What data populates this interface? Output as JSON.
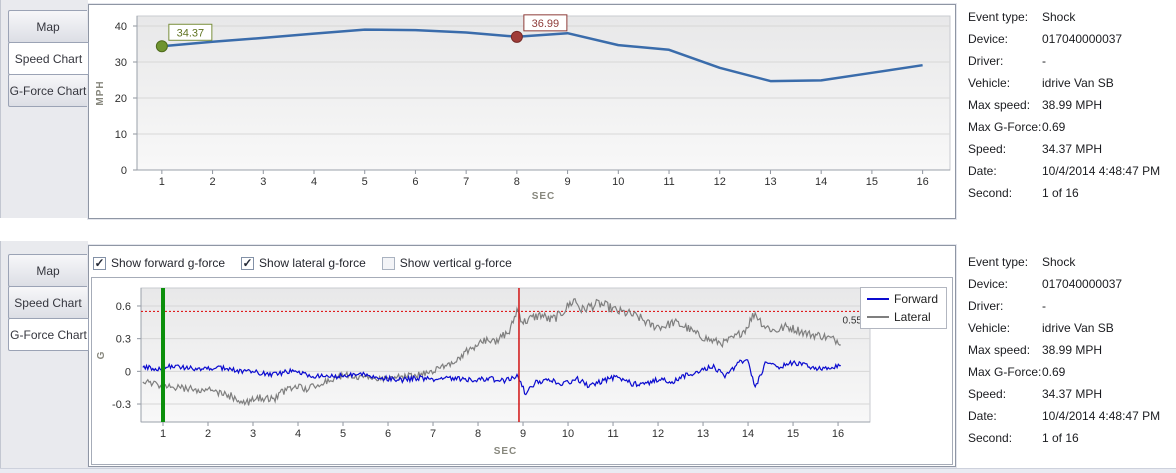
{
  "panels": {
    "speed": {
      "tabs": [
        {
          "label": "Map",
          "selected": false
        },
        {
          "label": "Speed Chart",
          "selected": true
        },
        {
          "label": "G-Force Chart",
          "selected": false
        }
      ]
    },
    "gforce": {
      "tabs": [
        {
          "label": "Map",
          "selected": false
        },
        {
          "label": "Speed Chart",
          "selected": false
        },
        {
          "label": "G-Force Chart",
          "selected": true
        }
      ],
      "checkboxes": [
        {
          "label": "Show forward g-force",
          "checked": true
        },
        {
          "label": "Show lateral g-force",
          "checked": true
        },
        {
          "label": "Show vertical g-force",
          "checked": false
        }
      ]
    }
  },
  "details": {
    "rows": [
      {
        "label": "Event type:",
        "value": "Shock"
      },
      {
        "label": "Device:",
        "value": "017040000037"
      },
      {
        "label": "Driver:",
        "value": "-"
      },
      {
        "label": "Vehicle:",
        "value": "idrive Van SB"
      },
      {
        "label": "Max speed:",
        "value": "38.99 MPH"
      },
      {
        "label": "Max G-Force:",
        "value": "0.69"
      },
      {
        "label": "Speed:",
        "value": "34.37 MPH"
      },
      {
        "label": "Date:",
        "value": "10/4/2014 4:48:47 PM"
      },
      {
        "label": "Second:",
        "value": "1 of 16"
      }
    ]
  },
  "chart_data": [
    {
      "type": "line",
      "title": "Speed Chart",
      "xlabel": "SEC",
      "ylabel": "MPH",
      "x": [
        1,
        2,
        3,
        4,
        5,
        6,
        7,
        8,
        9,
        10,
        11,
        12,
        13,
        14,
        15,
        16
      ],
      "series": [
        {
          "name": "Speed",
          "color": "#3a6cab",
          "values": [
            34.37,
            35.6,
            36.7,
            37.9,
            38.99,
            38.85,
            38.2,
            36.99,
            38.0,
            34.7,
            33.4,
            28.4,
            24.7,
            24.9,
            27.0,
            29.1
          ]
        }
      ],
      "annotations": [
        {
          "x": 1,
          "y": 34.37,
          "label": "34.37",
          "dot_fill": "#6f9430",
          "dot_stroke": "#4e6b1c",
          "box_stroke": "#7a8f3c",
          "text_color": "#5f7320"
        },
        {
          "x": 8,
          "y": 36.99,
          "label": "36.99",
          "dot_fill": "#a03c38",
          "dot_stroke": "#742825",
          "box_stroke": "#8e3b38",
          "text_color": "#8e3b38"
        }
      ],
      "xticks": [
        1,
        2,
        3,
        4,
        5,
        6,
        7,
        8,
        9,
        10,
        11,
        12,
        13,
        14,
        15,
        16
      ],
      "yticks": [
        0,
        10,
        20,
        30,
        40
      ],
      "xlim": [
        0.51,
        16.54
      ],
      "ylim": [
        0,
        42.78
      ],
      "grid": true,
      "legend_position": "none"
    },
    {
      "type": "line",
      "title": "G-Force Chart",
      "xlabel": "SEC",
      "ylabel": "G",
      "xticks": [
        1,
        2,
        3,
        4,
        5,
        6,
        7,
        8,
        9,
        10,
        11,
        12,
        13,
        14,
        15,
        16
      ],
      "yticks": [
        -0.3,
        0,
        0.3,
        0.6
      ],
      "xlim": [
        0.511,
        16.71
      ],
      "ylim": [
        -0.465,
        0.765
      ],
      "grid": true,
      "threshold": {
        "y": 0.55,
        "label": "0.55",
        "color": "#dd0000"
      },
      "event_markers": [
        {
          "name": "event-start-marker",
          "x": 1,
          "color": "#0b8f0b",
          "width": 4
        },
        {
          "name": "shock-moment-marker",
          "x": 8.91,
          "color": "#d21414",
          "width": 1.5
        }
      ],
      "series": [
        {
          "name": "Lateral",
          "color": "#7f7f7f",
          "noise": 0.028,
          "kx": [
            0.55,
            0.8,
            1.0,
            1.3,
            1.6,
            2.0,
            2.3,
            2.6,
            2.8,
            3.0,
            3.2,
            3.45,
            3.65,
            3.9,
            4.2,
            4.5,
            4.8,
            5.1,
            5.4,
            5.7,
            6.0,
            6.3,
            6.6,
            6.9,
            7.2,
            7.5,
            7.8,
            8.0,
            8.2,
            8.4,
            8.55,
            8.7,
            8.87,
            9.0,
            9.2,
            9.4,
            9.6,
            9.8,
            10.0,
            10.15,
            10.3,
            10.5,
            10.7,
            10.9,
            11.1,
            11.35,
            11.6,
            11.85,
            12.1,
            12.35,
            12.6,
            12.9,
            13.2,
            13.45,
            13.7,
            13.95,
            14.15,
            14.35,
            14.6,
            14.85,
            15.1,
            15.35,
            15.6,
            15.85,
            16.08
          ],
          "ky": [
            -0.09,
            -0.12,
            -0.13,
            -0.15,
            -0.16,
            -0.17,
            -0.2,
            -0.24,
            -0.29,
            -0.27,
            -0.24,
            -0.26,
            -0.19,
            -0.14,
            -0.16,
            -0.12,
            -0.06,
            -0.03,
            -0.05,
            -0.06,
            -0.07,
            -0.05,
            -0.04,
            -0.01,
            0.04,
            0.1,
            0.2,
            0.24,
            0.3,
            0.26,
            0.33,
            0.36,
            0.57,
            0.45,
            0.49,
            0.52,
            0.47,
            0.51,
            0.6,
            0.66,
            0.56,
            0.6,
            0.62,
            0.59,
            0.55,
            0.53,
            0.49,
            0.42,
            0.41,
            0.45,
            0.41,
            0.33,
            0.28,
            0.26,
            0.31,
            0.39,
            0.54,
            0.42,
            0.37,
            0.41,
            0.38,
            0.34,
            0.33,
            0.3,
            0.27
          ]
        },
        {
          "name": "Forward",
          "color": "#0b0bcf",
          "noise": 0.022,
          "kx": [
            0.55,
            0.9,
            1.2,
            1.5,
            1.9,
            2.3,
            2.7,
            3.1,
            3.5,
            3.9,
            4.3,
            4.7,
            5.1,
            5.5,
            5.9,
            6.3,
            6.7,
            7.1,
            7.5,
            7.9,
            8.3,
            8.6,
            8.9,
            9.05,
            9.3,
            9.6,
            9.9,
            10.2,
            10.5,
            10.8,
            11.1,
            11.4,
            11.7,
            12.0,
            12.3,
            12.6,
            12.9,
            13.2,
            13.5,
            13.8,
            14.0,
            14.15,
            14.4,
            14.7,
            15.0,
            15.3,
            15.6,
            15.85,
            16.08
          ],
          "ky": [
            0.05,
            0.02,
            0.05,
            0.03,
            0.02,
            0.03,
            0.0,
            -0.01,
            -0.03,
            0.01,
            -0.04,
            -0.05,
            -0.04,
            -0.03,
            -0.06,
            -0.08,
            -0.06,
            -0.08,
            -0.06,
            -0.08,
            -0.07,
            -0.09,
            -0.04,
            -0.21,
            -0.1,
            -0.07,
            -0.12,
            -0.07,
            -0.14,
            -0.08,
            -0.05,
            -0.11,
            -0.12,
            -0.07,
            -0.1,
            -0.04,
            0.0,
            0.05,
            -0.04,
            0.08,
            0.12,
            -0.16,
            0.08,
            0.04,
            0.08,
            0.05,
            0.02,
            0.03,
            0.06
          ]
        }
      ],
      "legend": [
        "Forward",
        "Lateral"
      ],
      "legend_position": "right-top"
    }
  ],
  "colors": {
    "speed_line": "#3a6cab",
    "forward_line": "#0b0bcf",
    "lateral_line": "#7f7f7f",
    "start_marker_green": "#0b8f0b",
    "shock_marker_red": "#d21414",
    "threshold_red": "#dd0000"
  }
}
